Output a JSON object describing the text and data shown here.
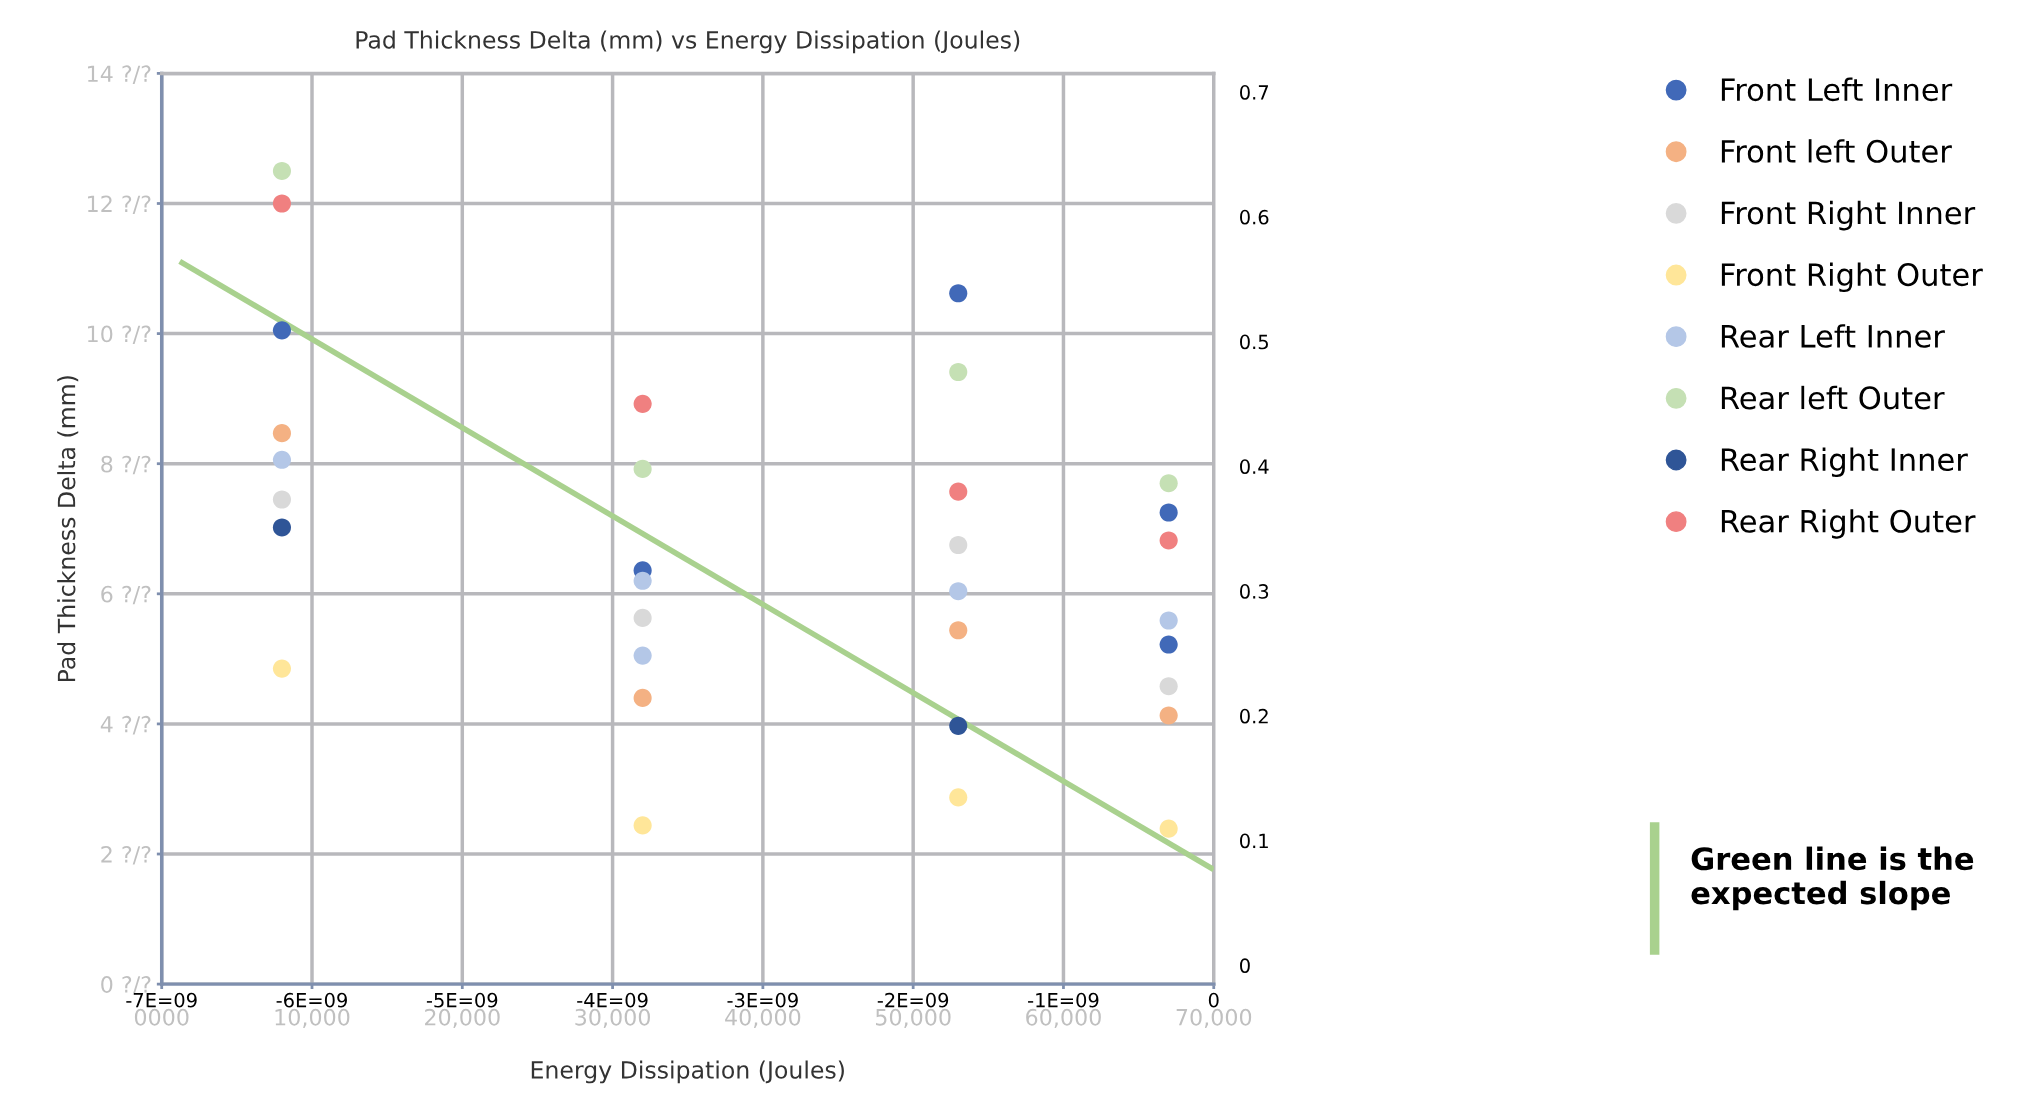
{
  "chart_data": {
    "type": "scatter",
    "title": "Pad Thickness Delta (mm) vs Energy Dissipation (Joules)",
    "xlabel": "Energy Dissipation (Joules)",
    "ylabel": "Pad Thickness Delta (mm)",
    "xlim": [
      0,
      70000
    ],
    "xticks": [
      {
        "value": 0,
        "label": "0000"
      },
      {
        "value": 10000,
        "label": "10,000"
      },
      {
        "value": 20000,
        "label": "20,000"
      },
      {
        "value": 30000,
        "label": "30,000"
      },
      {
        "value": 40000,
        "label": "40,000"
      },
      {
        "value": 50000,
        "label": "50,000"
      },
      {
        "value": 60000,
        "label": "60,000"
      },
      {
        "value": 70000,
        "label": "70,000"
      }
    ],
    "ylim": [
      0,
      14
    ],
    "yticks": [
      {
        "value": 0,
        "label": "0 ?/?"
      },
      {
        "value": 2,
        "label": "2 ?/?"
      },
      {
        "value": 4,
        "label": "4 ?/?"
      },
      {
        "value": 6,
        "label": "6 ?/?"
      },
      {
        "value": 8,
        "label": "8 ?/?"
      },
      {
        "value": 10,
        "label": "10 ?/?"
      },
      {
        "value": 12,
        "label": "12 ?/?"
      },
      {
        "value": 14,
        "label": "14 ?/?"
      }
    ],
    "y2lim": [
      -0.015,
      0.715
    ],
    "y2ticks": [
      0,
      0.1,
      0.2,
      0.3,
      0.4,
      0.5,
      0.6,
      0.7
    ],
    "grid": true,
    "legend": "top right",
    "marker": "circle",
    "x": [
      8000,
      32000,
      53000,
      67000
    ],
    "series": [
      {
        "name": "Front Left Inner",
        "color": "#4169b8",
        "values": [
          10.05,
          6.36,
          10.62,
          7.25
        ]
      },
      {
        "name": "Front left Outer",
        "color": "#f4b183",
        "values": [
          8.47,
          4.4,
          5.44,
          4.13
        ]
      },
      {
        "name": "Front Right Inner",
        "color": "#d9d9d9",
        "values": [
          7.45,
          5.63,
          6.75,
          4.58
        ]
      },
      {
        "name": "Front Right Outer",
        "color": "#ffe699",
        "values": [
          4.85,
          2.44,
          2.87,
          2.39
        ]
      },
      {
        "name": "Rear Left Inner",
        "color": "#b4c7e7",
        "values": [
          8.06,
          6.2,
          6.04,
          5.59
        ]
      },
      {
        "name": "Rear left Outer",
        "color": "#c5e0b4",
        "values": [
          12.5,
          7.92,
          9.41,
          7.7
        ]
      },
      {
        "name": "Rear Right Inner",
        "color": "#2f5597",
        "colors": [
          "#2f5597",
          "#b4c7e7",
          "#2f5597",
          "#4169b8"
        ],
        "values": [
          7.02,
          5.05,
          3.97,
          5.22
        ]
      },
      {
        "name": "Rear Right Outer",
        "color": "#f08080",
        "values": [
          12.0,
          8.92,
          7.57,
          6.82
        ]
      },
      {
        "type": "line",
        "marker": "none",
        "color": "#a9d18e",
        "x": [
          1200,
          70000
        ],
        "values": [
          11.11,
          1.76
        ]
      }
    ],
    "annotations": [
      "-7E=09",
      "-6E=09",
      "-5E=09",
      "-4E=09",
      "-3E=09",
      "-2E=09",
      "-1E=09",
      "0",
      "Green line is the expected slope"
    ]
  }
}
